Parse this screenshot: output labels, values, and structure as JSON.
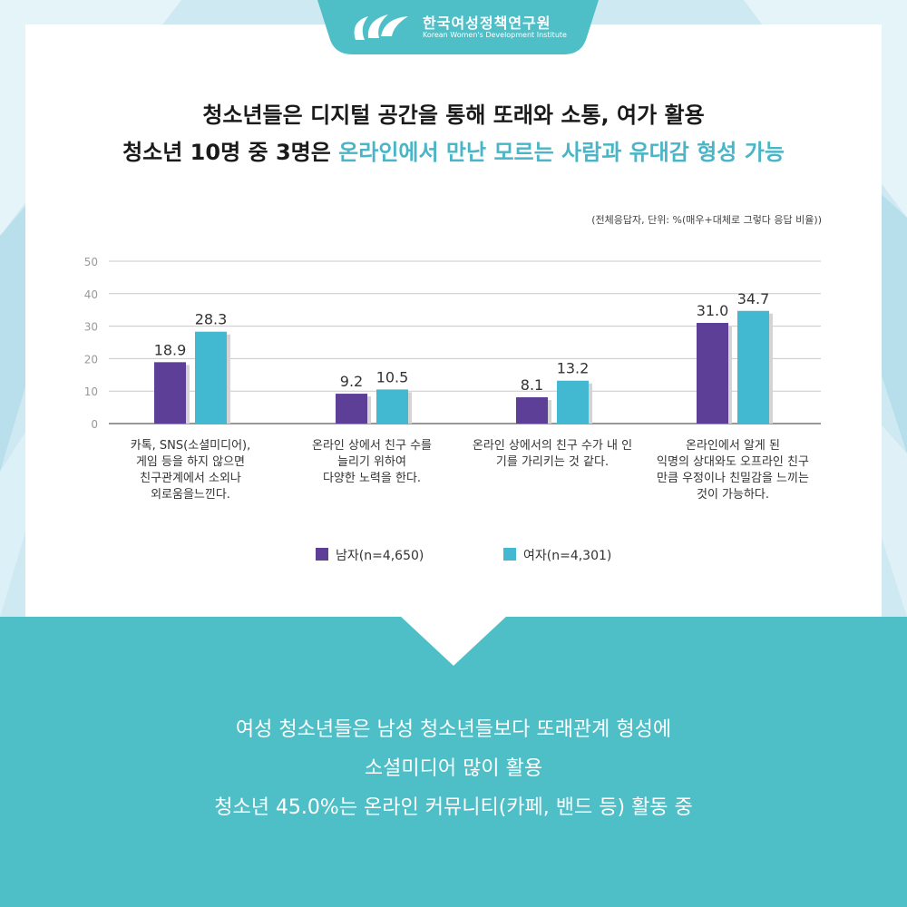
{
  "brand": {
    "name_ko": "한국여성정책연구원",
    "name_en": "Korean Women's Development Institute"
  },
  "headline": {
    "line1": "청소년들은 디지털 공간을 통해 또래와 소통, 여가 활용",
    "line2_prefix": "청소년 10명 중 3명은 ",
    "line2_highlight": "온라인에서 만난 모르는 사람과 유대감 형성 가능"
  },
  "chart_note": "(전체응답자, 단위: %(매우+대체로 그렇다 응답 비율))",
  "chart_data": {
    "type": "bar",
    "categories": [
      "카톡, SNS(소셜미디어),\n게임 등을 하지 않으면\n친구관계에서 소외나\n외로움을느낀다.",
      "온라인 상에서 친구 수를\n늘리기 위하여\n다양한 노력을 한다.",
      "온라인 상에서의 친구 수가 내 인\n기를 가리키는 것 같다.",
      "온라인에서 알게 된\n익명의 상대와도 오프라인 친구\n만큼 우정이나 친밀감을 느끼는\n것이 가능하다."
    ],
    "series": [
      {
        "name": "남자(n=4,650)",
        "color": "#5e3f98",
        "values": [
          18.9,
          9.2,
          8.1,
          31.0
        ],
        "labels": [
          "18.9",
          "9.2",
          "8.1",
          "31.0"
        ]
      },
      {
        "name": "여자(n=4,301)",
        "color": "#43b9d1",
        "values": [
          28.3,
          10.5,
          13.2,
          34.7
        ],
        "labels": [
          "28.3",
          "10.5",
          "13.2",
          "34.7"
        ]
      }
    ],
    "ylim": [
      0,
      50
    ],
    "yticks": [
      "0",
      "10",
      "20",
      "30",
      "40",
      "50"
    ],
    "grid": true,
    "legend": "bottom",
    "title": "",
    "xlabel": "",
    "ylabel": ""
  },
  "bottom": {
    "line1": "여성 청소년들은 남성 청소년들보다 또래관계 형성에",
    "line2": "소셜미디어 많이 활용",
    "line3": "청소년 45.0%는 온라인 커뮤니티(카페, 밴드 등) 활동 중"
  },
  "colors": {
    "accent": "#4ab5c6",
    "band": "#4ebfc7",
    "male": "#5e3f98",
    "female": "#43b9d1"
  }
}
